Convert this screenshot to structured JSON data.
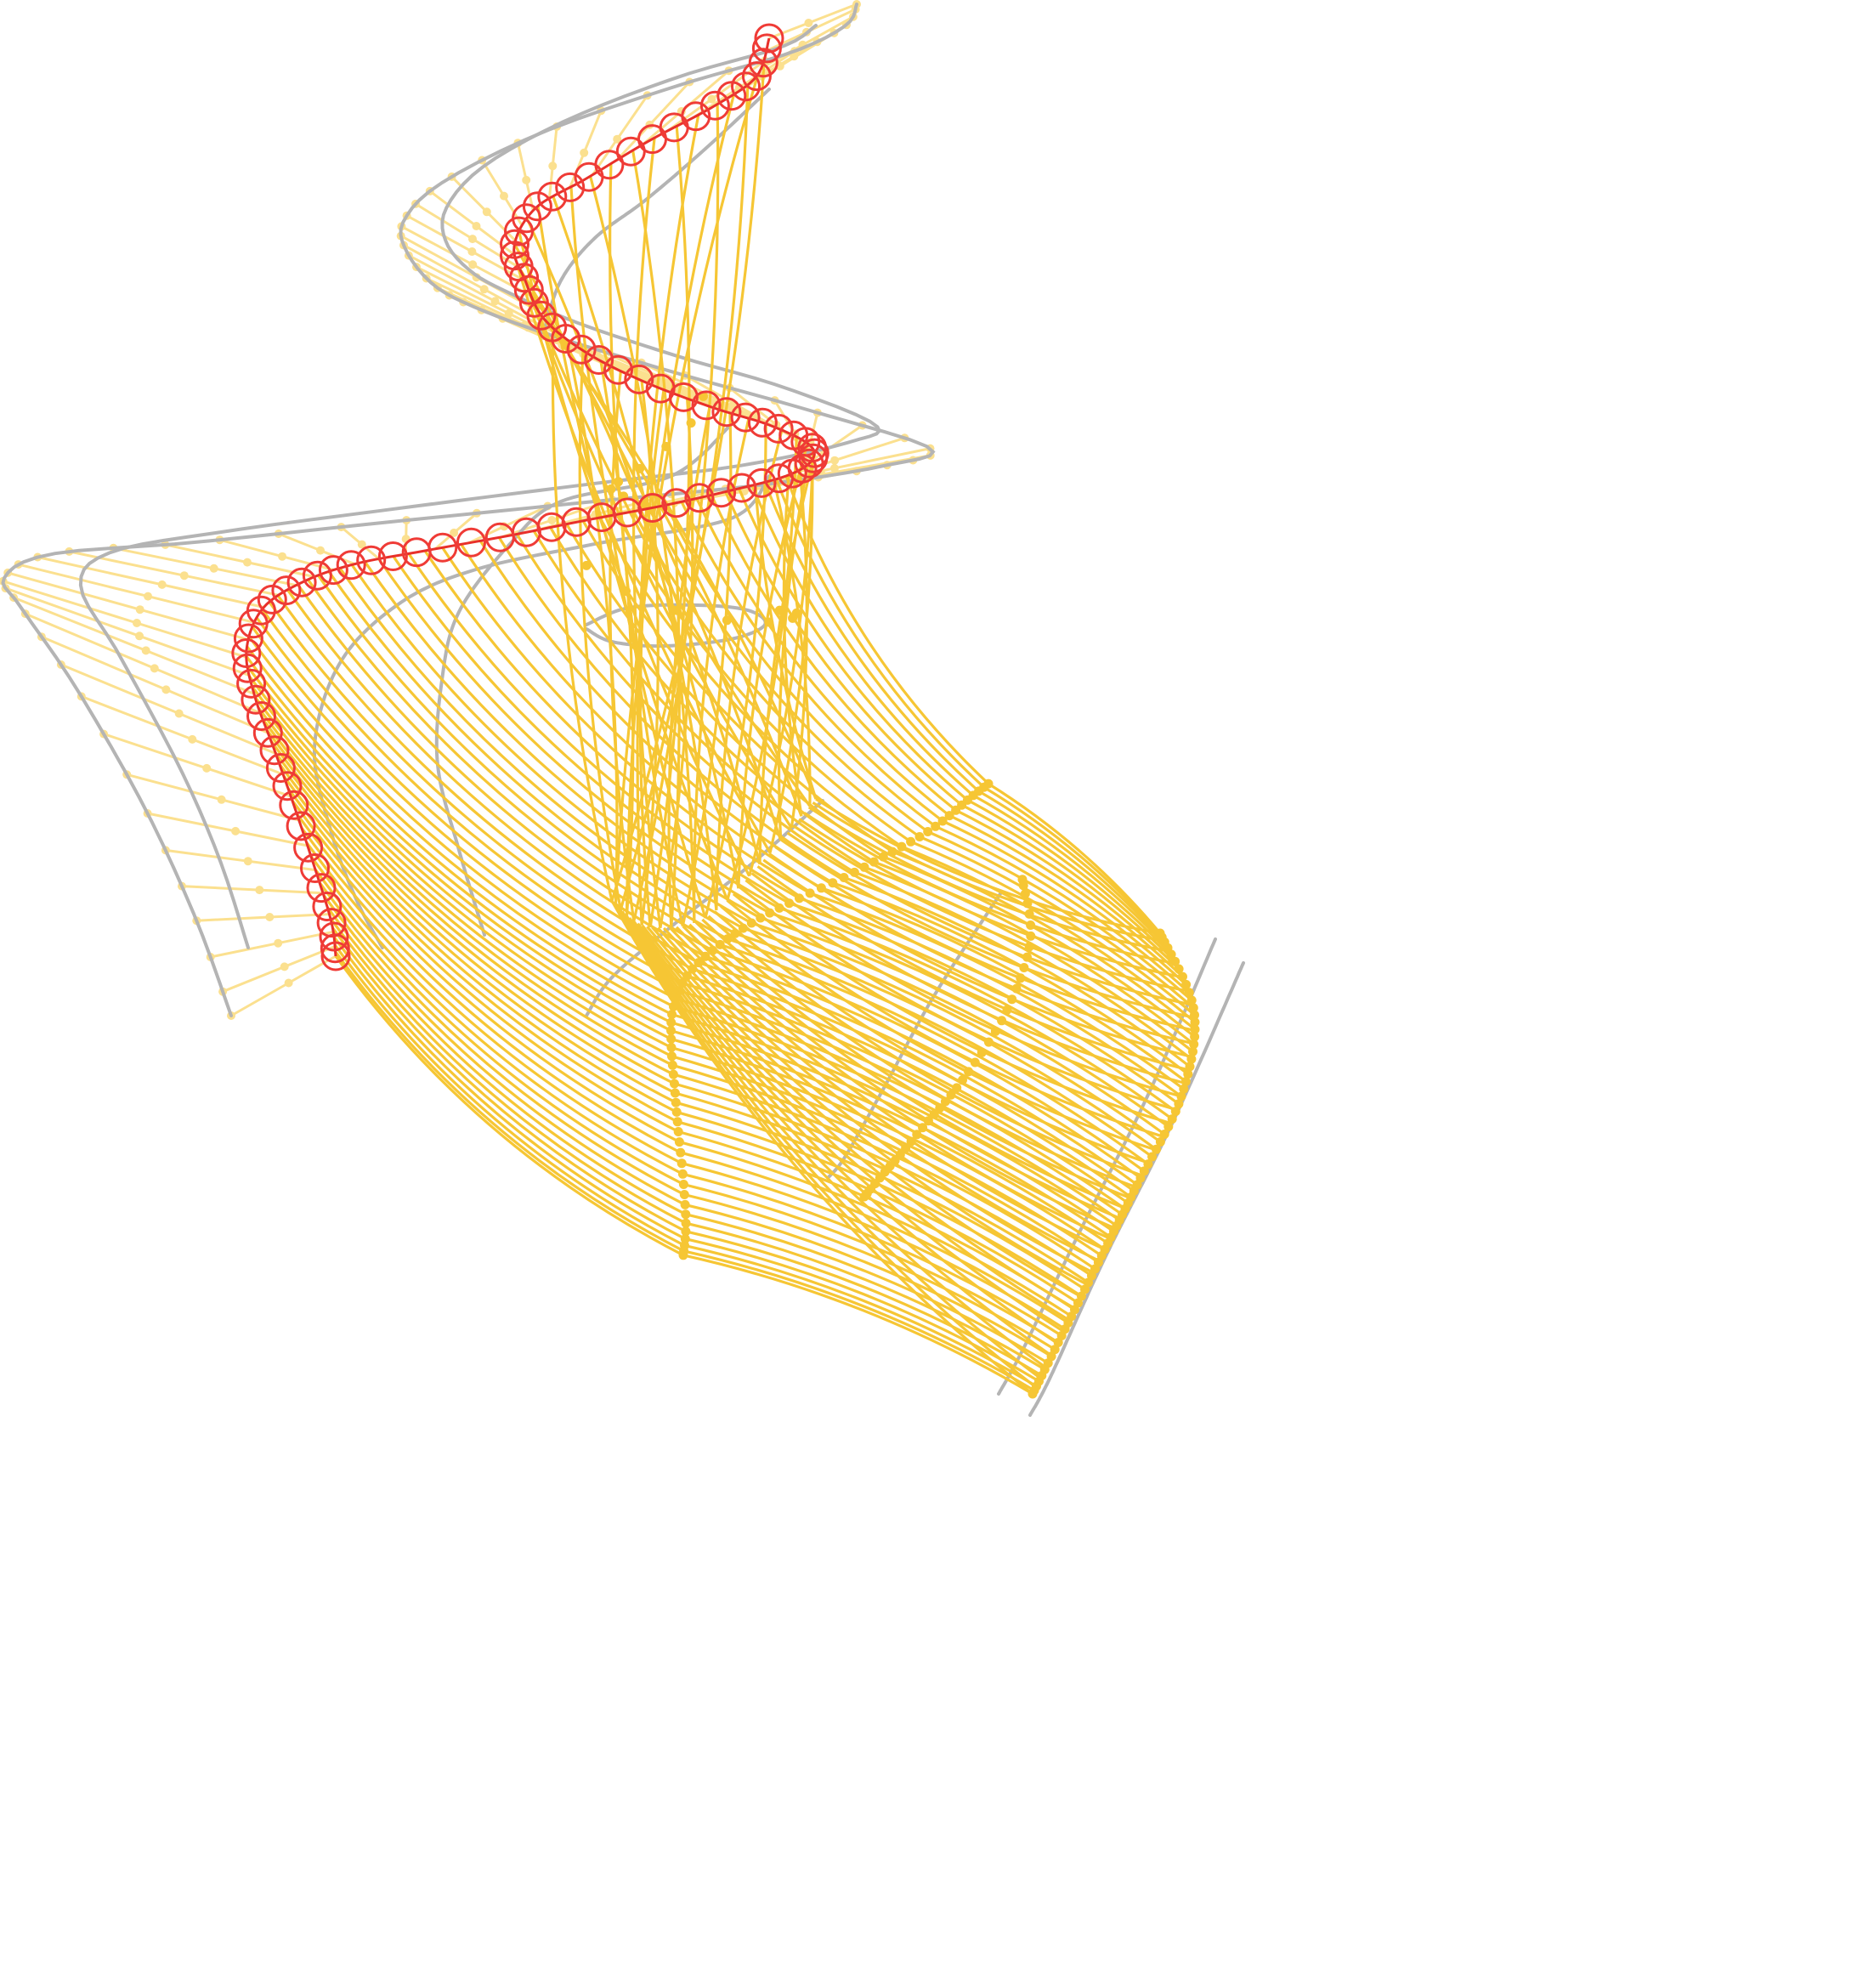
{
  "figure": {
    "colors": {
      "background": "#ffffff",
      "guide_curve": "#b4b4b4",
      "strand_dark": "#f6c634",
      "strand_light": "#fbe08f",
      "highlight_path": "#e8302a",
      "highlight_marker": "#ef3b36"
    }
  }
}
